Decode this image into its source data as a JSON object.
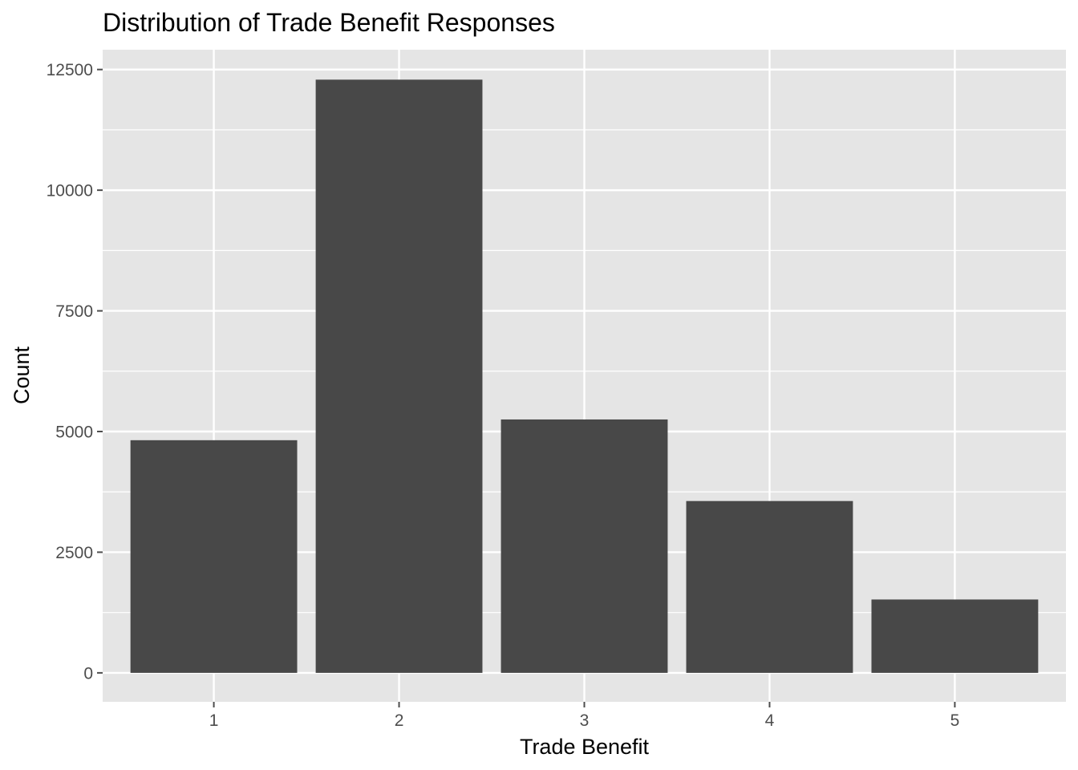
{
  "chart_data": {
    "type": "bar",
    "title": "Distribution of Trade Benefit Responses",
    "xlabel": "Trade Benefit",
    "ylabel": "Count",
    "categories": [
      "1",
      "2",
      "3",
      "4",
      "5"
    ],
    "values": [
      4820,
      12290,
      5250,
      3560,
      1520
    ],
    "ylim": [
      -600,
      12910
    ],
    "yticks": [
      0,
      2500,
      5000,
      7500,
      10000,
      12500
    ],
    "ytick_labels": [
      "0",
      "2500",
      "5000",
      "7500",
      "10000",
      "12500"
    ],
    "grid": true,
    "colors": {
      "bar": "#484848",
      "panel": "#e5e5e5",
      "grid": "#ffffff",
      "tick": "#4d4d4d"
    }
  }
}
